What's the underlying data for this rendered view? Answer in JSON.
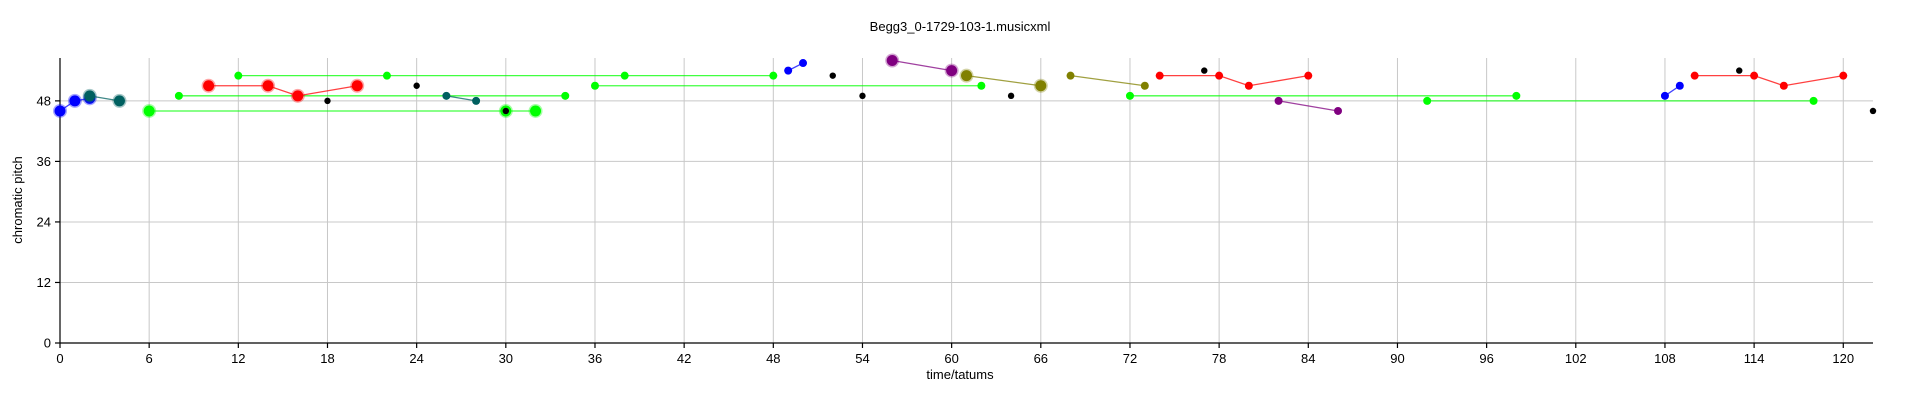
{
  "chart_data": {
    "type": "scatter",
    "title": "Begg3_0-1729-103-1.musicxml",
    "xlabel": "time/tatums",
    "ylabel": "chromatic pitch",
    "xlim": [
      0,
      122
    ],
    "ylim": [
      0,
      56.5
    ],
    "xticks": [
      0,
      6,
      12,
      18,
      24,
      30,
      36,
      42,
      48,
      54,
      60,
      66,
      72,
      78,
      84,
      90,
      96,
      102,
      108,
      114,
      120
    ],
    "yticks": [
      0,
      12,
      24,
      36,
      48
    ],
    "grid": true,
    "series": [
      {
        "color": "#0000ff",
        "style": "line",
        "size": "large",
        "points": [
          [
            0,
            46
          ],
          [
            1,
            48
          ],
          [
            2,
            48.5
          ]
        ]
      },
      {
        "color": "#006060",
        "style": "line",
        "size": "large",
        "points": [
          [
            2,
            49
          ],
          [
            4,
            48
          ]
        ]
      },
      {
        "color": "#00ff00",
        "style": "line",
        "size": "large",
        "points": [
          [
            6,
            46
          ],
          [
            30,
            46
          ],
          [
            32,
            46
          ]
        ]
      },
      {
        "color": "#00ff00",
        "style": "line",
        "size": "medium",
        "points": [
          [
            8,
            49
          ],
          [
            34,
            49
          ]
        ]
      },
      {
        "color": "#ff0000",
        "style": "line",
        "size": "large",
        "points": [
          [
            10,
            51
          ],
          [
            14,
            51
          ],
          [
            16,
            49
          ],
          [
            20,
            51
          ]
        ]
      },
      {
        "color": "#00ff00",
        "style": "line",
        "size": "medium",
        "points": [
          [
            12,
            53
          ],
          [
            22,
            53
          ],
          [
            38,
            53
          ],
          [
            48,
            53
          ]
        ]
      },
      {
        "color": "#006060",
        "style": "line",
        "size": "medium",
        "points": [
          [
            26,
            49
          ],
          [
            28,
            48
          ]
        ]
      },
      {
        "color": "#00ff00",
        "style": "line",
        "size": "medium",
        "points": [
          [
            36,
            51
          ],
          [
            62,
            51
          ]
        ]
      },
      {
        "color": "#0000ff",
        "style": "line",
        "size": "medium",
        "points": [
          [
            49,
            54
          ],
          [
            50,
            55.5
          ]
        ]
      },
      {
        "color": "#800080",
        "style": "line",
        "size": "large",
        "points": [
          [
            56,
            56
          ],
          [
            60,
            54
          ]
        ]
      },
      {
        "color": "#808000",
        "style": "line",
        "size": "large",
        "points": [
          [
            61,
            53
          ],
          [
            66,
            51
          ]
        ]
      },
      {
        "color": "#808000",
        "style": "line",
        "size": "medium",
        "points": [
          [
            68,
            53
          ],
          [
            73,
            51
          ]
        ]
      },
      {
        "color": "#00ff00",
        "style": "line",
        "size": "medium",
        "points": [
          [
            72,
            49
          ],
          [
            98,
            49
          ]
        ]
      },
      {
        "color": "#ff0000",
        "style": "line",
        "size": "medium",
        "points": [
          [
            74,
            53
          ],
          [
            78,
            53
          ],
          [
            80,
            51
          ],
          [
            84,
            53
          ]
        ]
      },
      {
        "color": "#800080",
        "style": "line",
        "size": "medium",
        "points": [
          [
            82,
            48
          ],
          [
            86,
            46
          ]
        ]
      },
      {
        "color": "#00ff00",
        "style": "line",
        "size": "medium",
        "points": [
          [
            92,
            48
          ],
          [
            118,
            48
          ]
        ]
      },
      {
        "color": "#0000ff",
        "style": "line",
        "size": "medium",
        "points": [
          [
            108,
            49
          ],
          [
            109,
            51
          ]
        ]
      },
      {
        "color": "#ff0000",
        "style": "line",
        "size": "medium",
        "points": [
          [
            110,
            53
          ],
          [
            114,
            53
          ],
          [
            116,
            51
          ],
          [
            120,
            53
          ]
        ]
      },
      {
        "color": "#000000",
        "style": "points",
        "size": "small",
        "points": [
          [
            18,
            48
          ],
          [
            24,
            51
          ],
          [
            30,
            46
          ],
          [
            52,
            53
          ],
          [
            54,
            49
          ],
          [
            64,
            49
          ],
          [
            77,
            54
          ],
          [
            113,
            54
          ],
          [
            122,
            46
          ]
        ]
      }
    ]
  }
}
